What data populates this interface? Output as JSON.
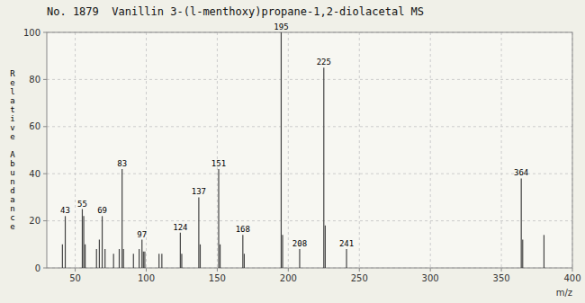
{
  "chart_data": {
    "type": "stem",
    "title": "No. 1879  Vanillin 3-(l-menthoxy)propane-1,2-diolacetal MS",
    "xlabel": "m/z",
    "ylabel": "R\ne\nl\na\nt\ni\nv\ne\n \nA\nb\nu\nn\nd\na\nn\nc\ne",
    "x": [
      41,
      43,
      55,
      56,
      57,
      65,
      67,
      69,
      71,
      77,
      81,
      83,
      84,
      91,
      95,
      97,
      98,
      99,
      109,
      111,
      124,
      125,
      137,
      138,
      151,
      152,
      168,
      169,
      195,
      196,
      208,
      225,
      226,
      241,
      364,
      365,
      380
    ],
    "values": [
      10,
      22,
      25,
      22,
      10,
      8,
      12,
      22,
      8,
      6,
      8,
      42,
      8,
      6,
      8,
      12,
      7,
      7,
      6,
      6,
      15,
      6,
      30,
      10,
      42,
      10,
      14,
      6,
      100,
      14,
      8,
      85,
      18,
      8,
      38,
      12,
      14
    ],
    "color": "#444444",
    "xlim": [
      30,
      400
    ],
    "ylim": [
      0,
      100
    ],
    "xticks": [
      50,
      100,
      150,
      200,
      250,
      300,
      350,
      400
    ],
    "yticks": [
      0,
      20,
      40,
      60,
      80,
      100
    ],
    "grid": true,
    "annotations": [
      {
        "x": 43,
        "y": 22,
        "text": "43"
      },
      {
        "x": 55,
        "y": 25,
        "text": "55"
      },
      {
        "x": 69,
        "y": 22,
        "text": "69"
      },
      {
        "x": 83,
        "y": 42,
        "text": "83"
      },
      {
        "x": 97,
        "y": 12,
        "text": "97"
      },
      {
        "x": 124,
        "y": 15,
        "text": "124"
      },
      {
        "x": 137,
        "y": 30,
        "text": "137"
      },
      {
        "x": 151,
        "y": 42,
        "text": "151"
      },
      {
        "x": 168,
        "y": 14,
        "text": "168"
      },
      {
        "x": 195,
        "y": 100,
        "text": "195"
      },
      {
        "x": 208,
        "y": 8,
        "text": "208"
      },
      {
        "x": 225,
        "y": 85,
        "text": "225"
      },
      {
        "x": 241,
        "y": 8,
        "text": "241"
      },
      {
        "x": 364,
        "y": 38,
        "text": "364"
      }
    ]
  }
}
